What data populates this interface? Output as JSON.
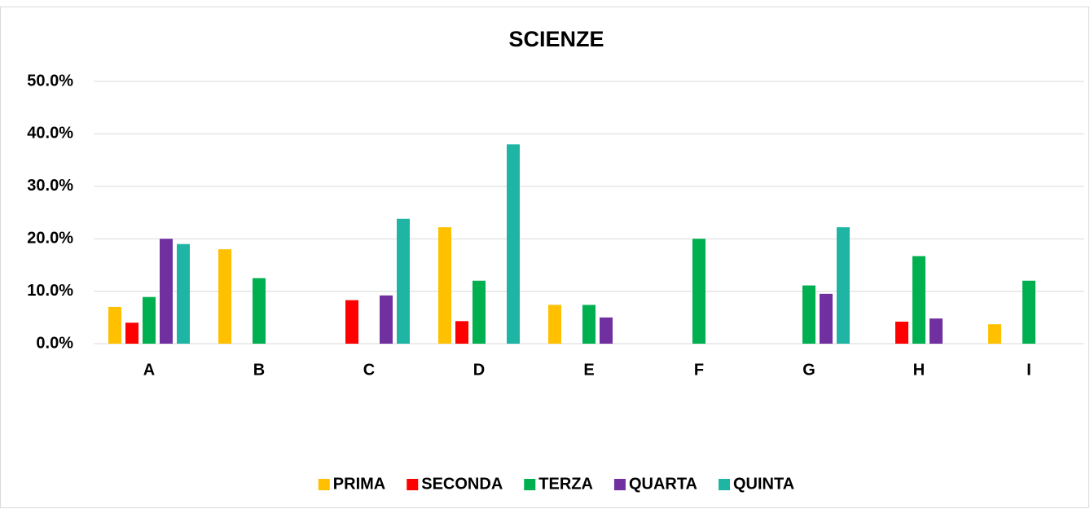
{
  "chart_data": {
    "type": "bar",
    "title": "SCIENZE",
    "categories": [
      "A",
      "B",
      "C",
      "D",
      "E",
      "F",
      "G",
      "H",
      "I"
    ],
    "series": [
      {
        "name": "PRIMA",
        "color": "#ffc000",
        "values": [
          7.0,
          18.0,
          null,
          22.2,
          7.4,
          null,
          null,
          null,
          3.7
        ]
      },
      {
        "name": "SECONDA",
        "color": "#ff0000",
        "values": [
          4.0,
          null,
          8.3,
          4.3,
          null,
          null,
          null,
          4.2,
          null
        ]
      },
      {
        "name": "TERZA",
        "color": "#00b050",
        "values": [
          8.9,
          12.5,
          null,
          12.0,
          7.4,
          20.0,
          11.1,
          16.7,
          12.0
        ]
      },
      {
        "name": "QUARTA",
        "color": "#7030a0",
        "values": [
          20.0,
          null,
          9.2,
          null,
          5.0,
          null,
          9.5,
          4.8,
          null
        ]
      },
      {
        "name": "QUINTA",
        "color": "#1fb5a5",
        "values": [
          19.0,
          null,
          23.8,
          38.0,
          null,
          null,
          22.2,
          null,
          null
        ]
      }
    ],
    "ylim": [
      0,
      50
    ],
    "yticks": [
      {
        "value": 0,
        "label": "0.0%"
      },
      {
        "value": 10,
        "label": "10.0%"
      },
      {
        "value": 20,
        "label": "20.0%"
      },
      {
        "value": 30,
        "label": "30.0%"
      },
      {
        "value": 40,
        "label": "40.0%"
      },
      {
        "value": 50,
        "label": "50.0%"
      }
    ],
    "grid": true,
    "legend": "bottom"
  }
}
